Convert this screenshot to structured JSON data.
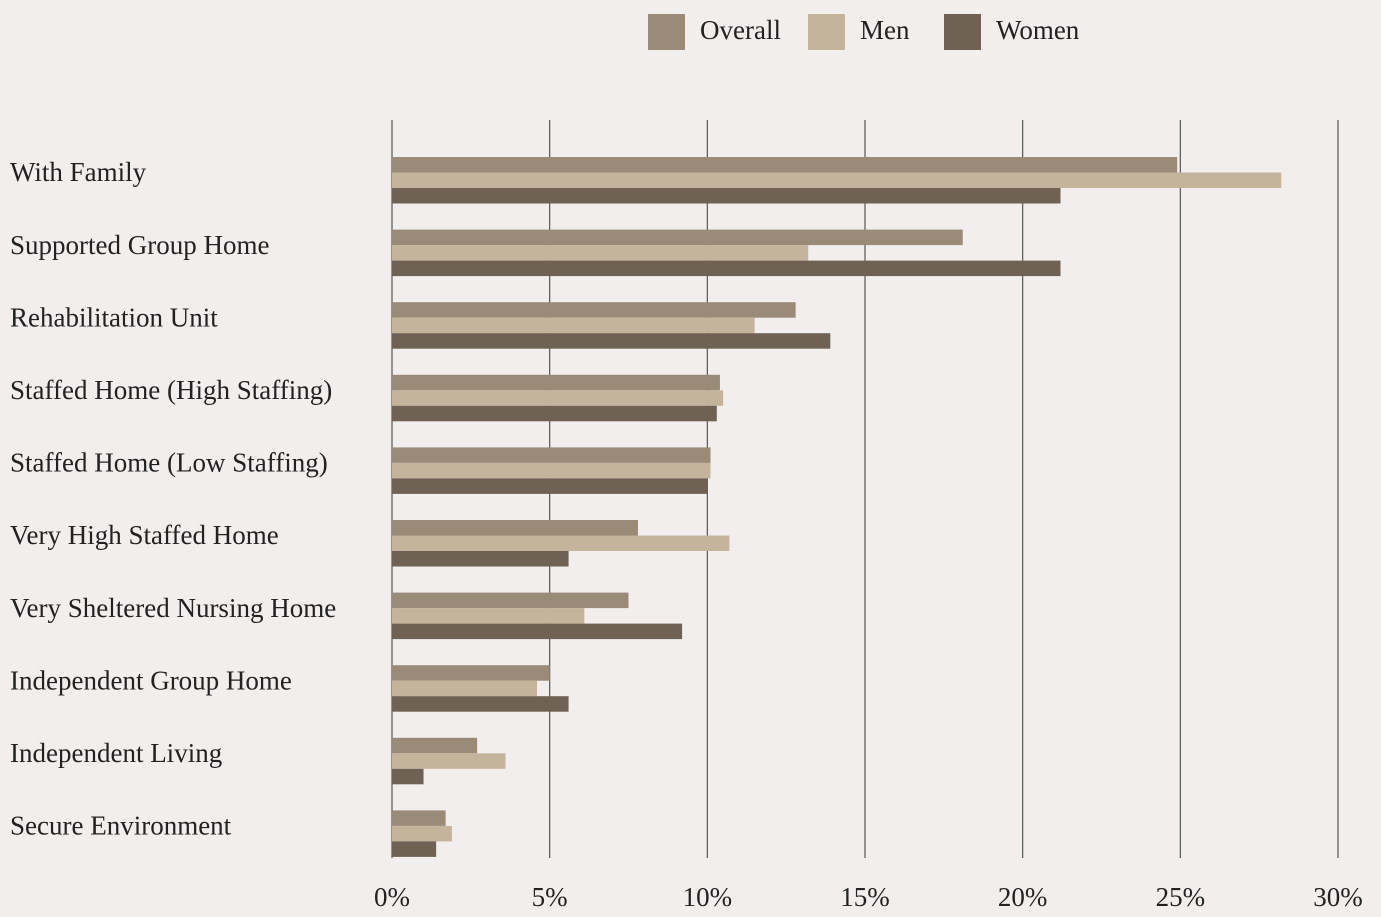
{
  "chart_data": {
    "type": "hbar",
    "categories": [
      "With Family",
      "Supported Group Home",
      "Rehabilitation Unit",
      "Staffed Home (High Staffing)",
      "Staffed Home (Low Staffing)",
      "Very High Staffed Home",
      "Very Sheltered Nursing Home",
      "Independent Group Home",
      "Independent Living",
      "Secure Environment"
    ],
    "series": [
      {
        "name": "Overall",
        "color": "#9a8b79",
        "values": [
          24.9,
          18.1,
          12.8,
          10.4,
          10.1,
          7.8,
          7.5,
          5.0,
          2.7,
          1.7
        ]
      },
      {
        "name": "Men",
        "color": "#c4b49c",
        "values": [
          28.2,
          13.2,
          11.5,
          10.5,
          10.1,
          10.7,
          6.1,
          4.6,
          3.6,
          1.9
        ]
      },
      {
        "name": "Women",
        "color": "#6f6254",
        "values": [
          21.2,
          21.2,
          13.9,
          10.3,
          10.0,
          5.6,
          9.2,
          5.6,
          1.0,
          1.4
        ]
      }
    ],
    "xlim": [
      0,
      30
    ],
    "xticks": [
      {
        "value": 0,
        "label": "0%"
      },
      {
        "value": 5,
        "label": "5%"
      },
      {
        "value": 10,
        "label": "10%"
      },
      {
        "value": 15,
        "label": "15%"
      },
      {
        "value": 20,
        "label": "20%"
      },
      {
        "value": 25,
        "label": "25%"
      },
      {
        "value": 30,
        "label": "30%"
      }
    ],
    "grid": true,
    "legend": "top"
  }
}
